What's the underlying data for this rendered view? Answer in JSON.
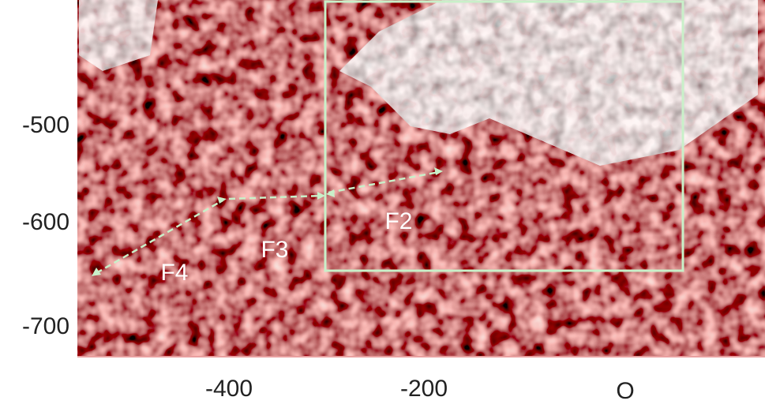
{
  "figure": {
    "y_tick_labels": [
      "-500",
      "-600",
      "-700"
    ],
    "x_tick_labels": [
      "-400",
      "-200",
      "O"
    ],
    "region_labels": [
      "F2",
      "F3",
      "F4"
    ]
  }
}
